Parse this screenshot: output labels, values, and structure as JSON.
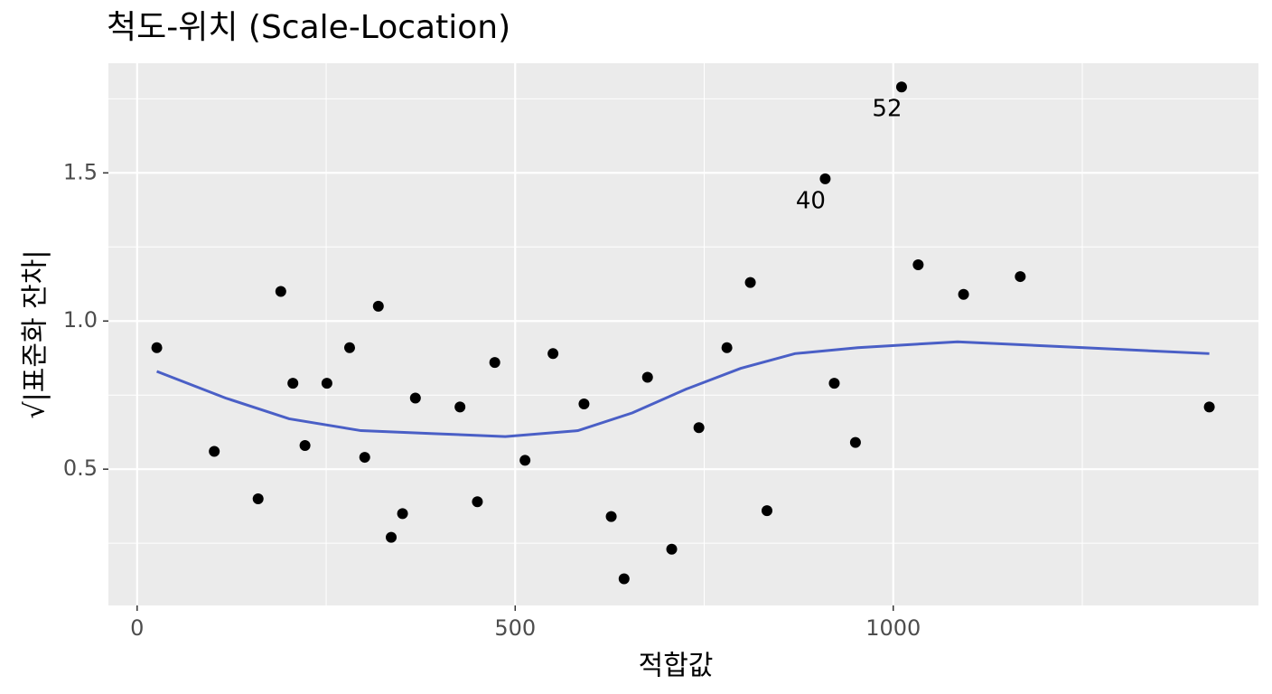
{
  "chart_data": {
    "type": "scatter",
    "title": "척도-위치 (Scale-Location)",
    "xlabel": "적합값",
    "ylabel": "√|표준화 잔차|",
    "x": [
      26,
      102,
      160,
      190,
      206,
      222,
      251,
      281,
      301,
      319,
      336,
      351,
      368,
      427,
      450,
      473,
      513,
      550,
      591,
      627,
      644,
      675,
      707,
      743,
      780,
      811,
      833,
      910,
      922,
      950,
      1011,
      1033,
      1093,
      1168,
      1418
    ],
    "values": [
      0.91,
      0.56,
      0.4,
      1.1,
      0.79,
      0.58,
      0.79,
      0.91,
      0.54,
      1.05,
      0.27,
      0.35,
      0.74,
      0.71,
      0.39,
      0.86,
      0.53,
      0.89,
      0.72,
      0.34,
      0.13,
      0.81,
      0.23,
      0.64,
      0.91,
      1.13,
      0.36,
      1.48,
      0.79,
      0.59,
      1.79,
      1.19,
      1.09,
      1.15,
      0.71
    ],
    "point_labels": [
      null,
      null,
      null,
      null,
      null,
      null,
      null,
      null,
      null,
      null,
      null,
      null,
      null,
      null,
      null,
      null,
      null,
      null,
      null,
      null,
      null,
      null,
      null,
      null,
      null,
      null,
      null,
      "40",
      null,
      null,
      "52",
      null,
      null,
      null,
      null
    ],
    "color": "#000000",
    "smooth": {
      "color": "#4a5fc6",
      "x": [
        26,
        117,
        201,
        296,
        392,
        487,
        583,
        655,
        726,
        798,
        870,
        953,
        1085,
        1252,
        1418
      ],
      "values": [
        0.83,
        0.74,
        0.67,
        0.63,
        0.62,
        0.61,
        0.63,
        0.69,
        0.77,
        0.84,
        0.89,
        0.91,
        0.93,
        0.91,
        0.89
      ]
    },
    "xlim": [
      -38,
      1483
    ],
    "ylim": [
      0.04,
      1.87
    ],
    "xticks": [
      0,
      500,
      1000
    ],
    "yticks": [
      0.5,
      {
        "value": 1,
        "label": "1.0"
      },
      1.5
    ],
    "x_minor_ticks": [
      250,
      750,
      1250
    ],
    "y_minor_ticks": [
      0.25,
      0.75,
      1.25,
      1.75
    ],
    "grid": true,
    "panel_color": "#ebebeb"
  }
}
